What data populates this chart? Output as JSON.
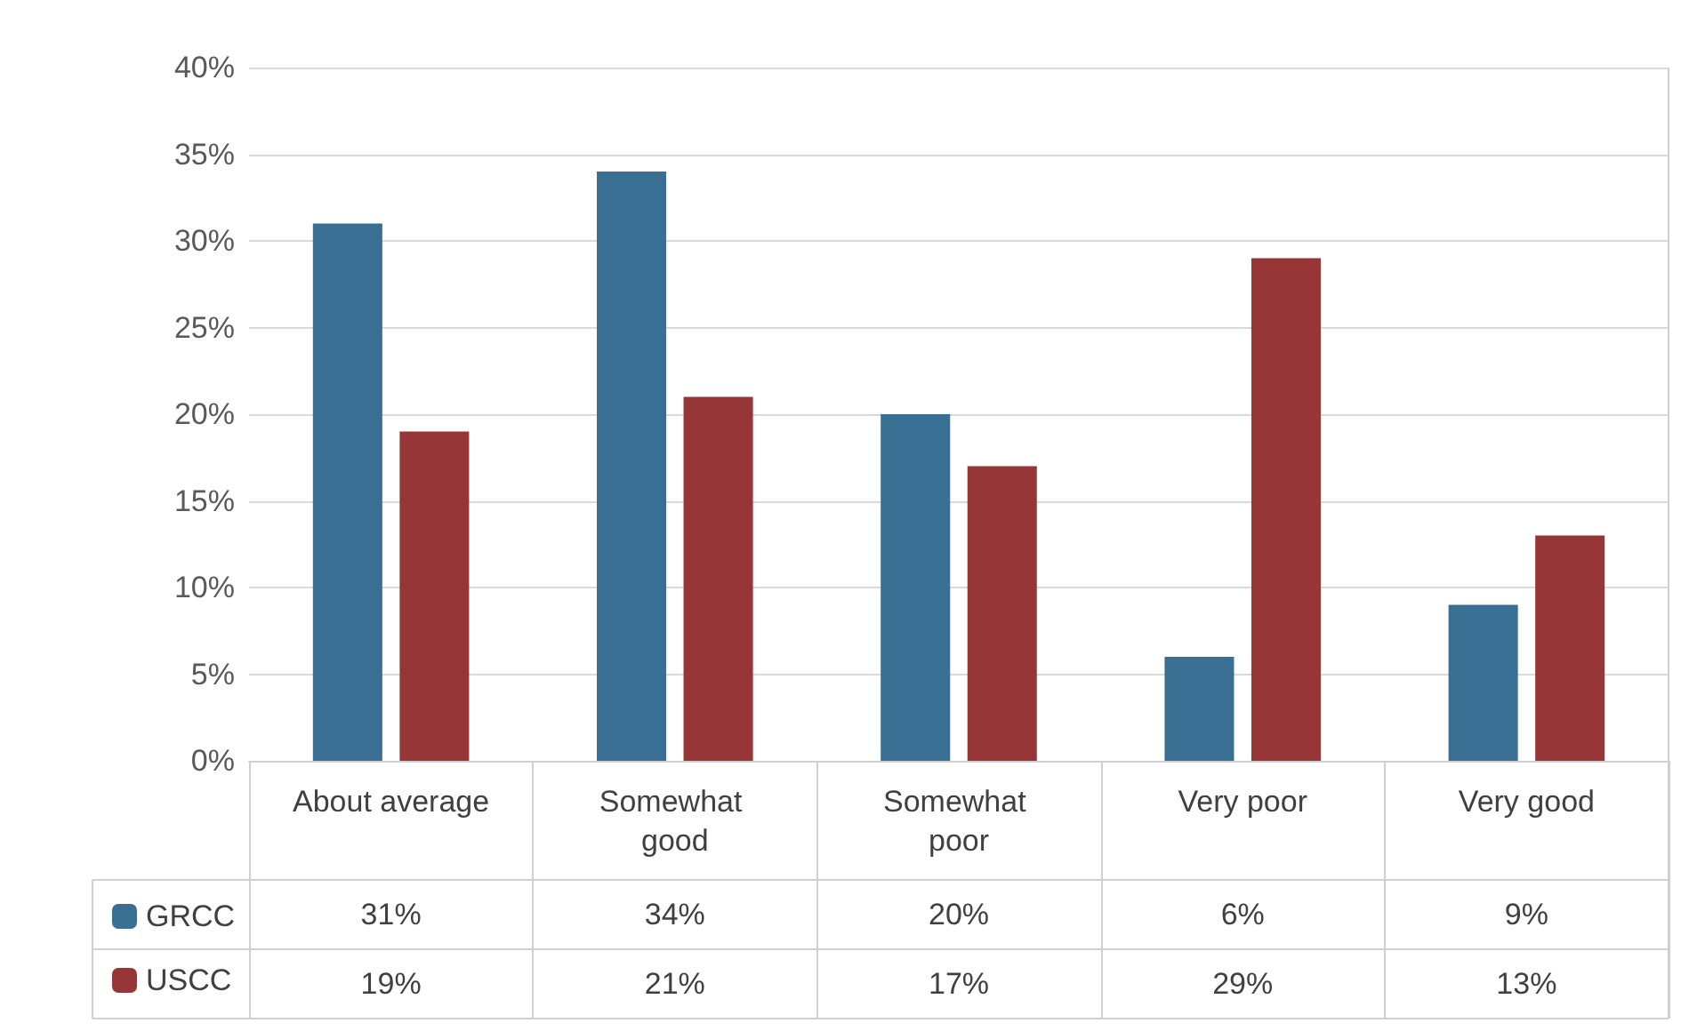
{
  "chart_data": {
    "type": "bar",
    "categories": [
      "About average",
      "Somewhat good",
      "Somewhat poor",
      "Very poor",
      "Very good"
    ],
    "series": [
      {
        "name": "GRCC",
        "color": "#386f92",
        "values": [
          31,
          34,
          20,
          6,
          9
        ],
        "value_labels": [
          "31%",
          "34%",
          "20%",
          "6%",
          "9%"
        ]
      },
      {
        "name": "USCC",
        "color": "#973636",
        "values": [
          19,
          21,
          17,
          29,
          13
        ],
        "value_labels": [
          "19%",
          "21%",
          "17%",
          "29%",
          "13%"
        ]
      }
    ],
    "ylim": [
      0,
      40
    ],
    "yticks": [
      {
        "value": 0,
        "label": "0%"
      },
      {
        "value": 5,
        "label": "5%"
      },
      {
        "value": 10,
        "label": "10%"
      },
      {
        "value": 15,
        "label": "15%"
      },
      {
        "value": 20,
        "label": "20%"
      },
      {
        "value": 25,
        "label": "25%"
      },
      {
        "value": 30,
        "label": "30%"
      },
      {
        "value": 35,
        "label": "35%"
      },
      {
        "value": 40,
        "label": "40%"
      }
    ],
    "grid": "y",
    "legend": "bottom"
  }
}
